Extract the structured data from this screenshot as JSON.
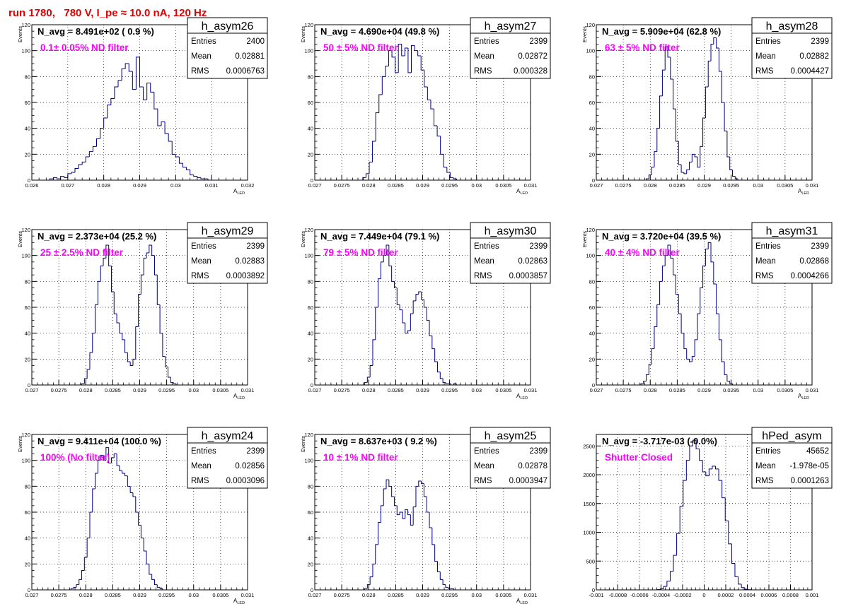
{
  "canvas_title": "run 1780,   780 V, I_pe ≈ 10.0 nA, 120 Hz",
  "colors": {
    "title": "#e00000",
    "histogram": "#000080",
    "annotation": "#ff00ff",
    "frame": "#000000",
    "grid": "#000000"
  },
  "chart_data": [
    {
      "type": "histogram",
      "name": "h_asym26",
      "navg": "N_avg = 8.491e+02 ( 0.9 %)",
      "filter": "0.1± 0.05% ND filter",
      "stats": [
        [
          "Entries",
          "2400"
        ],
        [
          "Mean",
          "0.02881"
        ],
        [
          "RMS",
          "0.0006763"
        ]
      ],
      "xlim": [
        0.026,
        0.032
      ],
      "ylim": [
        0,
        120
      ],
      "xticks": [
        0.026,
        0.027,
        0.028,
        0.029,
        0.03,
        0.031,
        0.032
      ],
      "xtick_labels": [
        "0.026",
        "0.027",
        "0.028",
        "0.029",
        "0.03",
        "0.031",
        "0.032"
      ],
      "yticks": [
        0,
        20,
        40,
        60,
        80,
        100,
        120
      ],
      "xlabel": "A",
      "xlabel_sub": "LED",
      "ylabel": "Events",
      "x": [
        0.02655,
        0.02665,
        0.02675,
        0.02685,
        0.02695,
        0.02705,
        0.02715,
        0.02725,
        0.02735,
        0.02745,
        0.02755,
        0.02765,
        0.02775,
        0.02785,
        0.02795,
        0.02805,
        0.02815,
        0.02825,
        0.02835,
        0.02845,
        0.02855,
        0.02865,
        0.02875,
        0.02885,
        0.02895,
        0.02905,
        0.02915,
        0.02925,
        0.02935,
        0.02945,
        0.02955,
        0.02965,
        0.02975,
        0.02985,
        0.02995,
        0.03005,
        0.03015,
        0.03025,
        0.03035,
        0.03045,
        0.03055,
        0.03065,
        0.03075,
        0.03085,
        0.03095
      ],
      "y": [
        1,
        2,
        1,
        3,
        2,
        5,
        6,
        9,
        12,
        14,
        18,
        22,
        26,
        32,
        40,
        48,
        58,
        63,
        72,
        77,
        86,
        90,
        84,
        70,
        95,
        72,
        62,
        75,
        68,
        55,
        42,
        45,
        36,
        30,
        20,
        18,
        13,
        10,
        8,
        4,
        3,
        2,
        1,
        1,
        0
      ]
    },
    {
      "type": "histogram",
      "name": "h_asym27",
      "navg": "N_avg = 4.690e+04 (49.8 %)",
      "filter": "50 ± 5% ND filter",
      "stats": [
        [
          "Entries",
          "2399"
        ],
        [
          "Mean",
          "0.02872"
        ],
        [
          "RMS",
          "0.000328"
        ]
      ],
      "xlim": [
        0.027,
        0.031
      ],
      "ylim": [
        0,
        120
      ],
      "xticks": [
        0.027,
        0.0275,
        0.028,
        0.0285,
        0.029,
        0.0295,
        0.03,
        0.0305,
        0.031
      ],
      "xtick_labels": [
        "0.027",
        "0.0275",
        "0.028",
        "0.0285",
        "0.029",
        "0.0295",
        "0.03",
        "0.0305",
        "0.031"
      ],
      "yticks": [
        0,
        20,
        40,
        60,
        80,
        100,
        120
      ],
      "xlabel": "A",
      "xlabel_sub": "LED",
      "ylabel": "Events",
      "x": [
        0.02792,
        0.02798,
        0.02804,
        0.0281,
        0.02816,
        0.02822,
        0.02828,
        0.02834,
        0.0284,
        0.02846,
        0.02852,
        0.02858,
        0.02864,
        0.0287,
        0.02876,
        0.02882,
        0.02888,
        0.02894,
        0.029,
        0.02906,
        0.02912,
        0.02918,
        0.02924,
        0.0293,
        0.02936,
        0.02942,
        0.02948,
        0.02954,
        0.0296
      ],
      "y": [
        2,
        5,
        14,
        30,
        52,
        66,
        80,
        88,
        100,
        95,
        83,
        105,
        96,
        102,
        83,
        104,
        100,
        96,
        85,
        72,
        62,
        55,
        42,
        34,
        20,
        10,
        6,
        2,
        1
      ]
    },
    {
      "type": "histogram",
      "name": "h_asym28",
      "navg": "N_avg = 5.909e+04 (62.8 %)",
      "filter": "63 ± 5% ND filter",
      "stats": [
        [
          "Entries",
          "2399"
        ],
        [
          "Mean",
          "0.02882"
        ],
        [
          "RMS",
          "0.0004427"
        ]
      ],
      "xlim": [
        0.027,
        0.031
      ],
      "ylim": [
        0,
        120
      ],
      "xticks": [
        0.027,
        0.0275,
        0.028,
        0.0285,
        0.029,
        0.0295,
        0.03,
        0.0305,
        0.031
      ],
      "xtick_labels": [
        "0.027",
        "0.0275",
        "0.028",
        "0.0285",
        "0.029",
        "0.0295",
        "0.03",
        "0.0305",
        "0.031"
      ],
      "yticks": [
        0,
        20,
        40,
        60,
        80,
        100,
        120
      ],
      "xlabel": "A",
      "xlabel_sub": "LED",
      "ylabel": "Events",
      "x": [
        0.02795,
        0.028,
        0.02805,
        0.0281,
        0.02815,
        0.0282,
        0.02825,
        0.0283,
        0.02835,
        0.0284,
        0.02845,
        0.0285,
        0.02855,
        0.0286,
        0.02865,
        0.0287,
        0.02875,
        0.0288,
        0.02885,
        0.0289,
        0.02895,
        0.029,
        0.02905,
        0.0291,
        0.02915,
        0.0292,
        0.02925,
        0.0293,
        0.02935,
        0.0294,
        0.02945,
        0.0295,
        0.02955,
        0.0296
      ],
      "y": [
        1,
        4,
        10,
        22,
        40,
        65,
        85,
        103,
        95,
        78,
        55,
        30,
        12,
        6,
        5,
        8,
        14,
        20,
        18,
        10,
        26,
        48,
        72,
        92,
        105,
        110,
        102,
        84,
        60,
        38,
        18,
        8,
        3,
        1
      ]
    },
    {
      "type": "histogram",
      "name": "h_asym29",
      "navg": "N_avg = 2.373e+04 (25.2 %)",
      "filter": "25 ± 2.5% ND filter",
      "stats": [
        [
          "Entries",
          "2399"
        ],
        [
          "Mean",
          "0.02883"
        ],
        [
          "RMS",
          "0.0003892"
        ]
      ],
      "xlim": [
        0.027,
        0.031
      ],
      "ylim": [
        0,
        120
      ],
      "xticks": [
        0.027,
        0.0275,
        0.028,
        0.0285,
        0.029,
        0.0295,
        0.03,
        0.0305,
        0.031
      ],
      "xtick_labels": [
        "0.027",
        "0.0275",
        "0.028",
        "0.0285",
        "0.029",
        "0.0295",
        "0.03",
        "0.0305",
        "0.031"
      ],
      "yticks": [
        0,
        20,
        40,
        60,
        80,
        100,
        120
      ],
      "xlabel": "A",
      "xlabel_sub": "LED",
      "ylabel": "Events",
      "x": [
        0.02795,
        0.028,
        0.02805,
        0.0281,
        0.02815,
        0.0282,
        0.02825,
        0.0283,
        0.02835,
        0.0284,
        0.02845,
        0.0285,
        0.02855,
        0.0286,
        0.02865,
        0.0287,
        0.02875,
        0.0288,
        0.02885,
        0.0289,
        0.02895,
        0.029,
        0.02905,
        0.0291,
        0.02915,
        0.0292,
        0.02925,
        0.0293,
        0.02935,
        0.0294,
        0.02945,
        0.0295,
        0.02955,
        0.0296,
        0.02965
      ],
      "y": [
        1,
        5,
        12,
        25,
        40,
        62,
        80,
        92,
        98,
        108,
        92,
        72,
        55,
        48,
        40,
        35,
        25,
        18,
        15,
        20,
        45,
        70,
        85,
        98,
        102,
        108,
        100,
        85,
        62,
        40,
        22,
        14,
        6,
        2,
        1
      ]
    },
    {
      "type": "histogram",
      "name": "h_asym30",
      "navg": "N_avg = 7.449e+04 (79.1 %)",
      "filter": "79 ± 5% ND filter",
      "stats": [
        [
          "Entries",
          "2399"
        ],
        [
          "Mean",
          "0.02863"
        ],
        [
          "RMS",
          "0.0003857"
        ]
      ],
      "xlim": [
        0.027,
        0.031
      ],
      "ylim": [
        0,
        120
      ],
      "xticks": [
        0.027,
        0.0275,
        0.028,
        0.0285,
        0.029,
        0.0295,
        0.03,
        0.0305,
        0.031
      ],
      "xtick_labels": [
        "0.027",
        "0.0275",
        "0.028",
        "0.0285",
        "0.029",
        "0.0295",
        "0.03",
        "0.0305",
        "0.031"
      ],
      "yticks": [
        0,
        20,
        40,
        60,
        80,
        100,
        120
      ],
      "xlabel": "A",
      "xlabel_sub": "LED",
      "ylabel": "Events",
      "x": [
        0.02795,
        0.028,
        0.02805,
        0.0281,
        0.02815,
        0.0282,
        0.02825,
        0.0283,
        0.02835,
        0.0284,
        0.02845,
        0.0285,
        0.02855,
        0.0286,
        0.02865,
        0.0287,
        0.02875,
        0.0288,
        0.02885,
        0.0289,
        0.02895,
        0.029,
        0.02905,
        0.0291,
        0.02915,
        0.0292,
        0.02925,
        0.0293,
        0.02935,
        0.0294,
        0.02945,
        0.0295,
        0.02955,
        0.0296
      ],
      "y": [
        2,
        6,
        15,
        35,
        60,
        82,
        95,
        100,
        108,
        92,
        80,
        75,
        62,
        58,
        48,
        40,
        42,
        55,
        65,
        70,
        72,
        66,
        60,
        50,
        38,
        28,
        18,
        10,
        5,
        2,
        1,
        1,
        0,
        1
      ]
    },
    {
      "type": "histogram",
      "name": "h_asym31",
      "navg": "N_avg = 3.720e+04 (39.5 %)",
      "filter": "40 ± 4% ND filter",
      "stats": [
        [
          "Entries",
          "2399"
        ],
        [
          "Mean",
          "0.02868"
        ],
        [
          "RMS",
          "0.0004266"
        ]
      ],
      "xlim": [
        0.027,
        0.031
      ],
      "ylim": [
        0,
        120
      ],
      "xticks": [
        0.027,
        0.0275,
        0.028,
        0.0285,
        0.029,
        0.0295,
        0.03,
        0.0305,
        0.031
      ],
      "xtick_labels": [
        "0.027",
        "0.0275",
        "0.028",
        "0.0285",
        "0.029",
        "0.0295",
        "0.03",
        "0.0305",
        "0.031"
      ],
      "yticks": [
        0,
        20,
        40,
        60,
        80,
        100,
        120
      ],
      "xlabel": "A",
      "xlabel_sub": "LED",
      "ylabel": "Events",
      "x": [
        0.02785,
        0.0279,
        0.02795,
        0.028,
        0.02805,
        0.0281,
        0.02815,
        0.0282,
        0.02825,
        0.0283,
        0.02835,
        0.0284,
        0.02845,
        0.0285,
        0.02855,
        0.0286,
        0.02865,
        0.0287,
        0.02875,
        0.0288,
        0.02885,
        0.0289,
        0.02895,
        0.029,
        0.02905,
        0.0291,
        0.02915,
        0.0292,
        0.02925,
        0.0293,
        0.02935,
        0.0294,
        0.02945,
        0.0295
      ],
      "y": [
        1,
        3,
        8,
        16,
        28,
        45,
        62,
        80,
        92,
        100,
        108,
        98,
        85,
        70,
        55,
        40,
        28,
        20,
        18,
        22,
        35,
        55,
        75,
        92,
        105,
        110,
        95,
        78,
        55,
        35,
        18,
        8,
        3,
        1
      ]
    },
    {
      "type": "histogram",
      "name": "h_asym24",
      "navg": "N_avg = 9.411e+04 (100.0 %)",
      "filter": "100% (No filter)",
      "stats": [
        [
          "Entries",
          "2399"
        ],
        [
          "Mean",
          "0.02856"
        ],
        [
          "RMS",
          "0.0003096"
        ]
      ],
      "xlim": [
        0.027,
        0.031
      ],
      "ylim": [
        0,
        120
      ],
      "xticks": [
        0.027,
        0.0275,
        0.028,
        0.0285,
        0.029,
        0.0295,
        0.03,
        0.0305,
        0.031
      ],
      "xtick_labels": [
        "0.027",
        "0.0275",
        "0.028",
        "0.0285",
        "0.029",
        "0.0295",
        "0.03",
        "0.0305",
        "0.031"
      ],
      "yticks": [
        0,
        20,
        40,
        60,
        80,
        100,
        120
      ],
      "xlabel": "A",
      "xlabel_sub": "LED",
      "ylabel": "Events",
      "x": [
        0.02775,
        0.0278,
        0.02785,
        0.0279,
        0.02795,
        0.028,
        0.02805,
        0.0281,
        0.02815,
        0.0282,
        0.02825,
        0.0283,
        0.02835,
        0.0284,
        0.02845,
        0.0285,
        0.02855,
        0.0286,
        0.02865,
        0.0287,
        0.02875,
        0.0288,
        0.02885,
        0.0289,
        0.02895,
        0.029,
        0.02905,
        0.0291,
        0.02915,
        0.0292,
        0.02925,
        0.0293,
        0.02935,
        0.0294
      ],
      "y": [
        1,
        2,
        4,
        8,
        15,
        25,
        40,
        60,
        78,
        90,
        100,
        104,
        100,
        110,
        98,
        102,
        105,
        96,
        92,
        90,
        88,
        80,
        75,
        72,
        60,
        50,
        40,
        30,
        20,
        12,
        8,
        4,
        2,
        1
      ]
    },
    {
      "type": "histogram",
      "name": "h_asym25",
      "navg": "N_avg = 8.637e+03 ( 9.2 %)",
      "filter": "10 ± 1% ND filter",
      "stats": [
        [
          "Entries",
          "2399"
        ],
        [
          "Mean",
          "0.02878"
        ],
        [
          "RMS",
          "0.0003947"
        ]
      ],
      "xlim": [
        0.027,
        0.031
      ],
      "ylim": [
        0,
        120
      ],
      "xticks": [
        0.027,
        0.0275,
        0.028,
        0.0285,
        0.029,
        0.0295,
        0.03,
        0.0305,
        0.031
      ],
      "xtick_labels": [
        "0.027",
        "0.0275",
        "0.028",
        "0.0285",
        "0.029",
        "0.0295",
        "0.03",
        "0.0305",
        "0.031"
      ],
      "yticks": [
        0,
        20,
        40,
        60,
        80,
        100,
        120
      ],
      "xlabel": "A",
      "xlabel_sub": "LED",
      "ylabel": "Events",
      "x": [
        0.02795,
        0.028,
        0.02805,
        0.0281,
        0.02815,
        0.0282,
        0.02825,
        0.0283,
        0.02835,
        0.0284,
        0.02845,
        0.0285,
        0.02855,
        0.0286,
        0.02865,
        0.0287,
        0.02875,
        0.0288,
        0.02885,
        0.0289,
        0.02895,
        0.029,
        0.02905,
        0.0291,
        0.02915,
        0.0292,
        0.02925,
        0.0293,
        0.02935,
        0.0294,
        0.02945,
        0.0295,
        0.02955,
        0.0296
      ],
      "y": [
        1,
        4,
        10,
        20,
        35,
        52,
        65,
        78,
        85,
        80,
        72,
        65,
        58,
        60,
        55,
        62,
        58,
        50,
        64,
        80,
        84,
        82,
        72,
        60,
        48,
        35,
        22,
        14,
        8,
        4,
        2,
        1,
        1,
        0
      ]
    },
    {
      "type": "histogram",
      "name": "hPed_asym",
      "navg": "N_avg = -3.717e-03 (-0.0%)",
      "filter": "Shutter Closed",
      "stats": [
        [
          "Entries",
          "45652"
        ],
        [
          "Mean",
          "-1.978e-05"
        ],
        [
          "RMS",
          "0.0001263"
        ]
      ],
      "xlim": [
        -0.001,
        0.001
      ],
      "ylim": [
        0,
        2700
      ],
      "xticks": [
        -0.001,
        -0.0008,
        -0.0006,
        -0.0004,
        -0.0002,
        0,
        0.0002,
        0.0004,
        0.0006,
        0.0008,
        0.001
      ],
      "xtick_labels": [
        "-0.001",
        "-0.0008",
        "-0.0006",
        "-0.0004",
        "-0.0002",
        "0",
        "0.0002",
        "0.0004",
        "0.0006",
        "0.0008",
        "0.001"
      ],
      "yticks": [
        0,
        500,
        1000,
        1500,
        2000,
        2500
      ],
      "xlabel": "",
      "xlabel_sub": "",
      "ylabel": "",
      "x": [
        -0.00042,
        -0.00039,
        -0.00036,
        -0.00033,
        -0.0003,
        -0.00027,
        -0.00024,
        -0.00021,
        -0.00018,
        -0.00015,
        -0.00012,
        -9e-05,
        -6e-05,
        -3e-05,
        0,
        3e-05,
        6e-05,
        9e-05,
        0.00012,
        0.00015,
        0.00018,
        0.00021,
        0.00024,
        0.00027,
        0.0003,
        0.00033,
        0.00036,
        0.00039,
        0.00042
      ],
      "y": [
        5,
        20,
        60,
        150,
        320,
        600,
        980,
        1450,
        1900,
        2250,
        2500,
        2600,
        2450,
        2250,
        2050,
        1980,
        2100,
        2150,
        2100,
        1900,
        1600,
        1200,
        800,
        460,
        230,
        100,
        40,
        12,
        3
      ]
    }
  ]
}
